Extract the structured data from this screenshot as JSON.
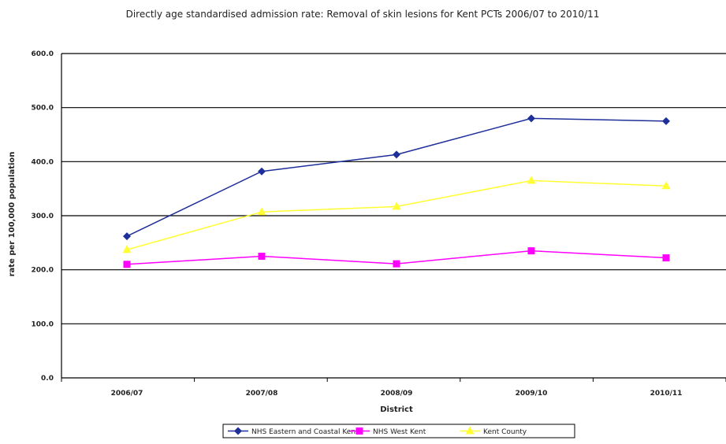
{
  "chart_data": {
    "type": "line",
    "title": "Directly age standardised admission rate: Removal of skin lesions for Kent PCTs 2006/07 to 2010/11",
    "xlabel": "District",
    "ylabel": "rate per 100,000 population",
    "categories": [
      "2006/07",
      "2007/08",
      "2008/09",
      "2009/10",
      "2010/11"
    ],
    "ylim": [
      0,
      600
    ],
    "yticks": [
      "0.0",
      "100.0",
      "200.0",
      "300.0",
      "400.0",
      "500.0",
      "600.0"
    ],
    "grid": true,
    "legend_position": "bottom",
    "series": [
      {
        "name": "NHS Eastern and Coastal Kent",
        "color": "#1f2f9a",
        "marker": "diamond",
        "values": [
          262,
          382,
          413,
          480,
          475
        ]
      },
      {
        "name": "NHS West Kent",
        "color": "#ff00ff",
        "marker": "square",
        "values": [
          210,
          225,
          211,
          235,
          222
        ]
      },
      {
        "name": "Kent County",
        "color": "#ffff33",
        "marker": "triangle",
        "values": [
          237,
          307,
          317,
          365,
          355
        ]
      }
    ]
  }
}
